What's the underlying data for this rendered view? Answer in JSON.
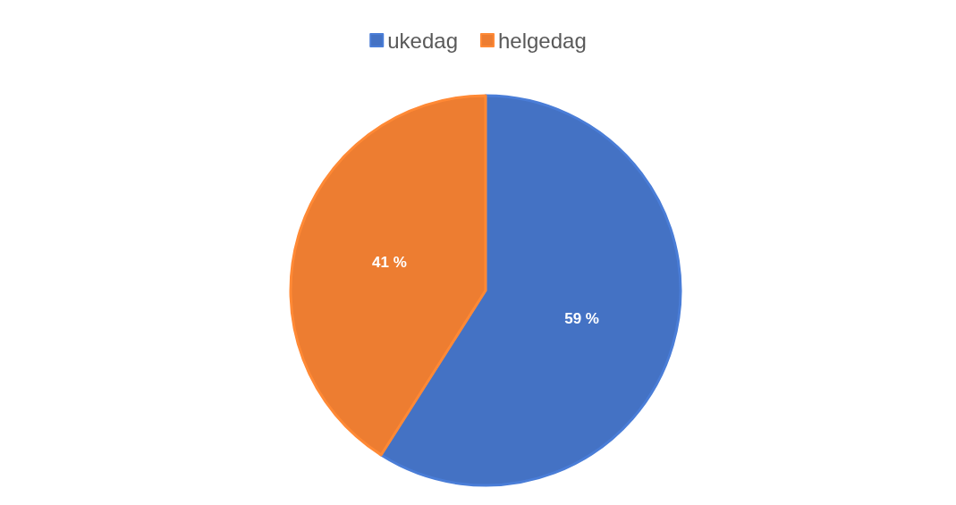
{
  "chart_data": {
    "type": "pie",
    "categories": [
      "ukedag",
      "helgedag"
    ],
    "values": [
      59,
      41
    ],
    "colors": [
      "#4472c4",
      "#ed7d31"
    ],
    "value_labels": [
      "59 %",
      "41 %"
    ],
    "legend": "top"
  }
}
